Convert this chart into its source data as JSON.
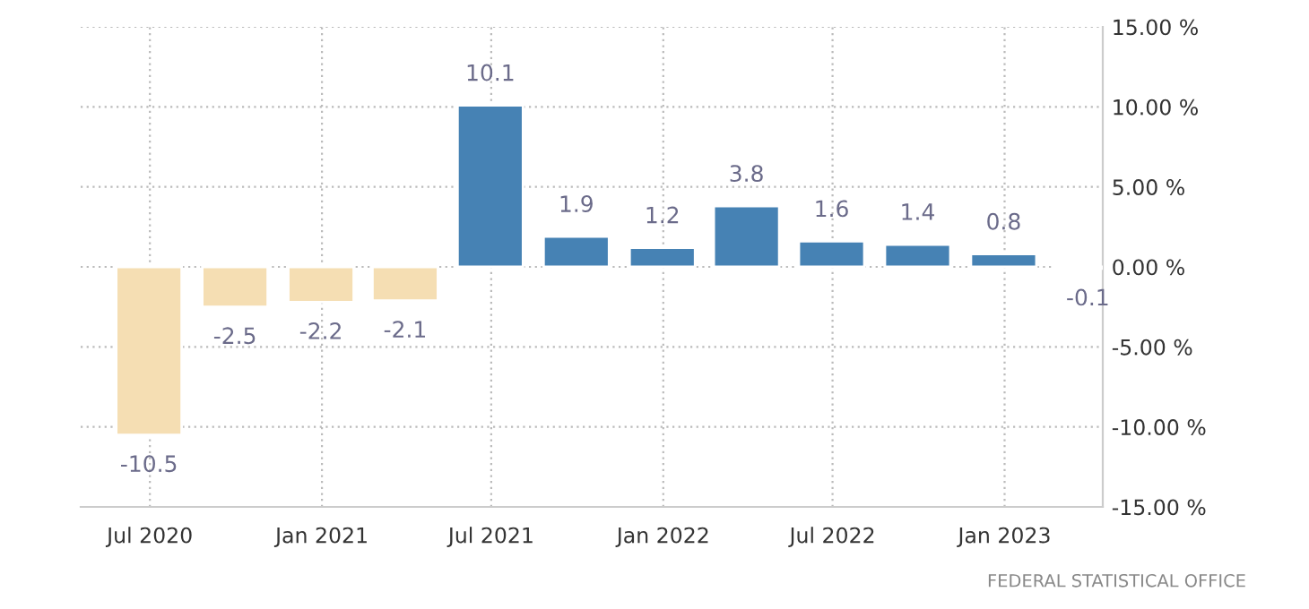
{
  "chart_data": {
    "type": "bar",
    "x": [
      "2020-06-30",
      "2020-09-30",
      "2020-12-31",
      "2021-03-31",
      "2021-06-30",
      "2021-09-30",
      "2021-12-31",
      "2022-03-31",
      "2022-06-30",
      "2022-09-30",
      "2022-12-31",
      "2023-03-31"
    ],
    "values": [
      -10.5,
      -2.5,
      -2.2,
      -2.1,
      10.1,
      1.9,
      1.2,
      3.8,
      1.6,
      1.4,
      0.8,
      -0.1
    ],
    "colors": [
      "#f5deb3",
      "#f5deb3",
      "#f5deb3",
      "#f5deb3",
      "#4682b4",
      "#4682b4",
      "#4682b4",
      "#4682b4",
      "#4682b4",
      "#4682b4",
      "#4682b4",
      "#f5deb3"
    ],
    "data_labels": true,
    "xlim": [
      "2020-04-18",
      "2023-04-16"
    ],
    "xticks": [
      {
        "value": "2020-07-01",
        "label": "Jul 2020"
      },
      {
        "value": "2021-01-01",
        "label": "Jan 2021"
      },
      {
        "value": "2021-07-01",
        "label": "Jul 2021"
      },
      {
        "value": "2022-01-01",
        "label": "Jan 2022"
      },
      {
        "value": "2022-07-01",
        "label": "Jul 2022"
      },
      {
        "value": "2023-01-01",
        "label": "Jan 2023"
      }
    ],
    "ylim": [
      -15,
      15
    ],
    "yticks": [
      {
        "value": -15,
        "label": "-15.00 %"
      },
      {
        "value": -10,
        "label": "-10.00 %"
      },
      {
        "value": -5,
        "label": "-5.00 %"
      },
      {
        "value": 0,
        "label": "0.00 %"
      },
      {
        "value": 5,
        "label": "5.00 %"
      },
      {
        "value": 10,
        "label": "10.00 %"
      },
      {
        "value": 15,
        "label": "15.00 %"
      }
    ],
    "grid": true,
    "annotations": [
      "FEDERAL STATISTICAL OFFICE"
    ]
  }
}
